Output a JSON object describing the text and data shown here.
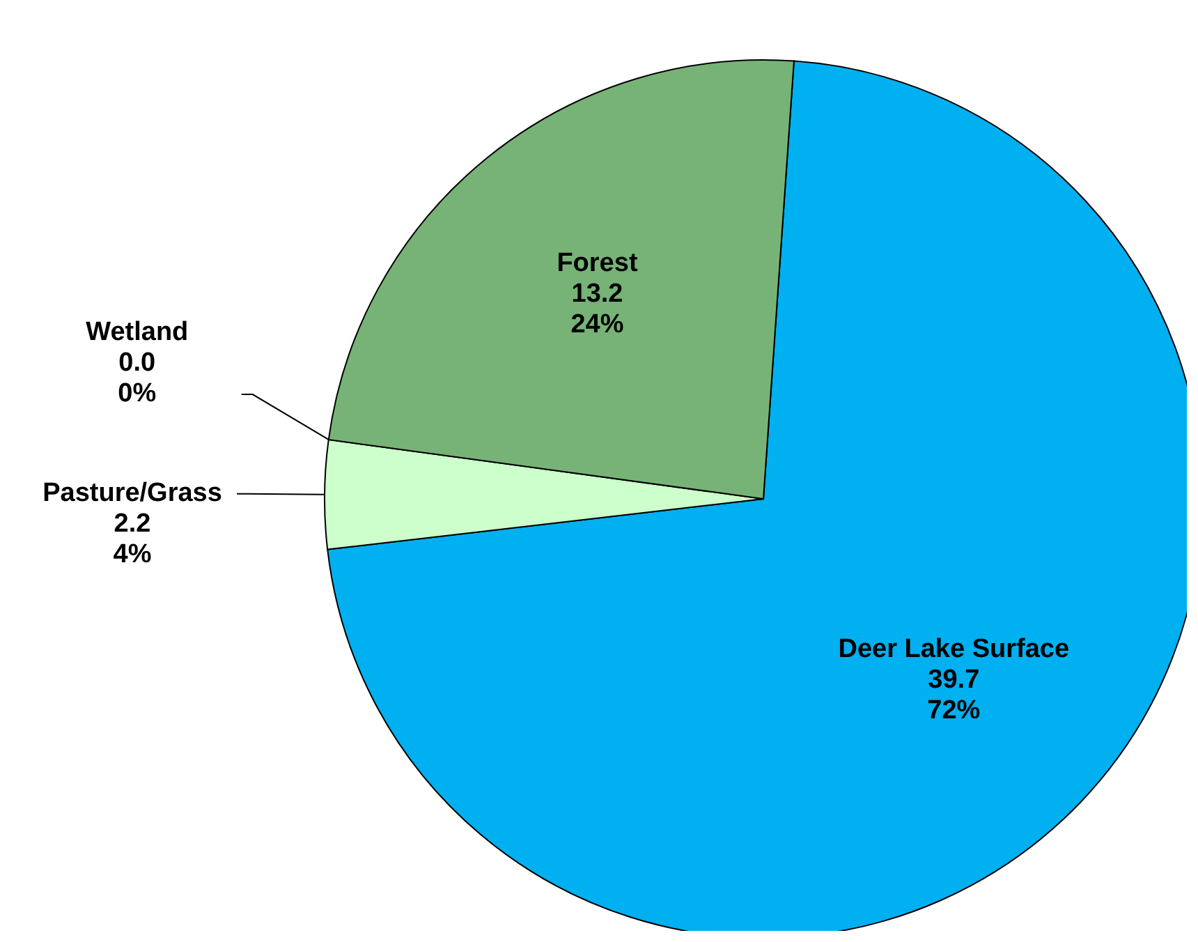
{
  "chart_data": {
    "type": "pie",
    "categories": [
      "Deer Lake Surface",
      "Pasture/Grass",
      "Wetland",
      "Forest"
    ],
    "values": [
      39.7,
      2.2,
      0.0,
      13.2
    ],
    "colors": [
      "#00b0f0",
      "#ccffcc",
      "#1f3f8f",
      "#77b377"
    ],
    "value_labels": [
      "39.7\n72%",
      "2.2\n4%",
      "0.0\n0%",
      "13.2\n24%"
    ],
    "legend": false
  }
}
